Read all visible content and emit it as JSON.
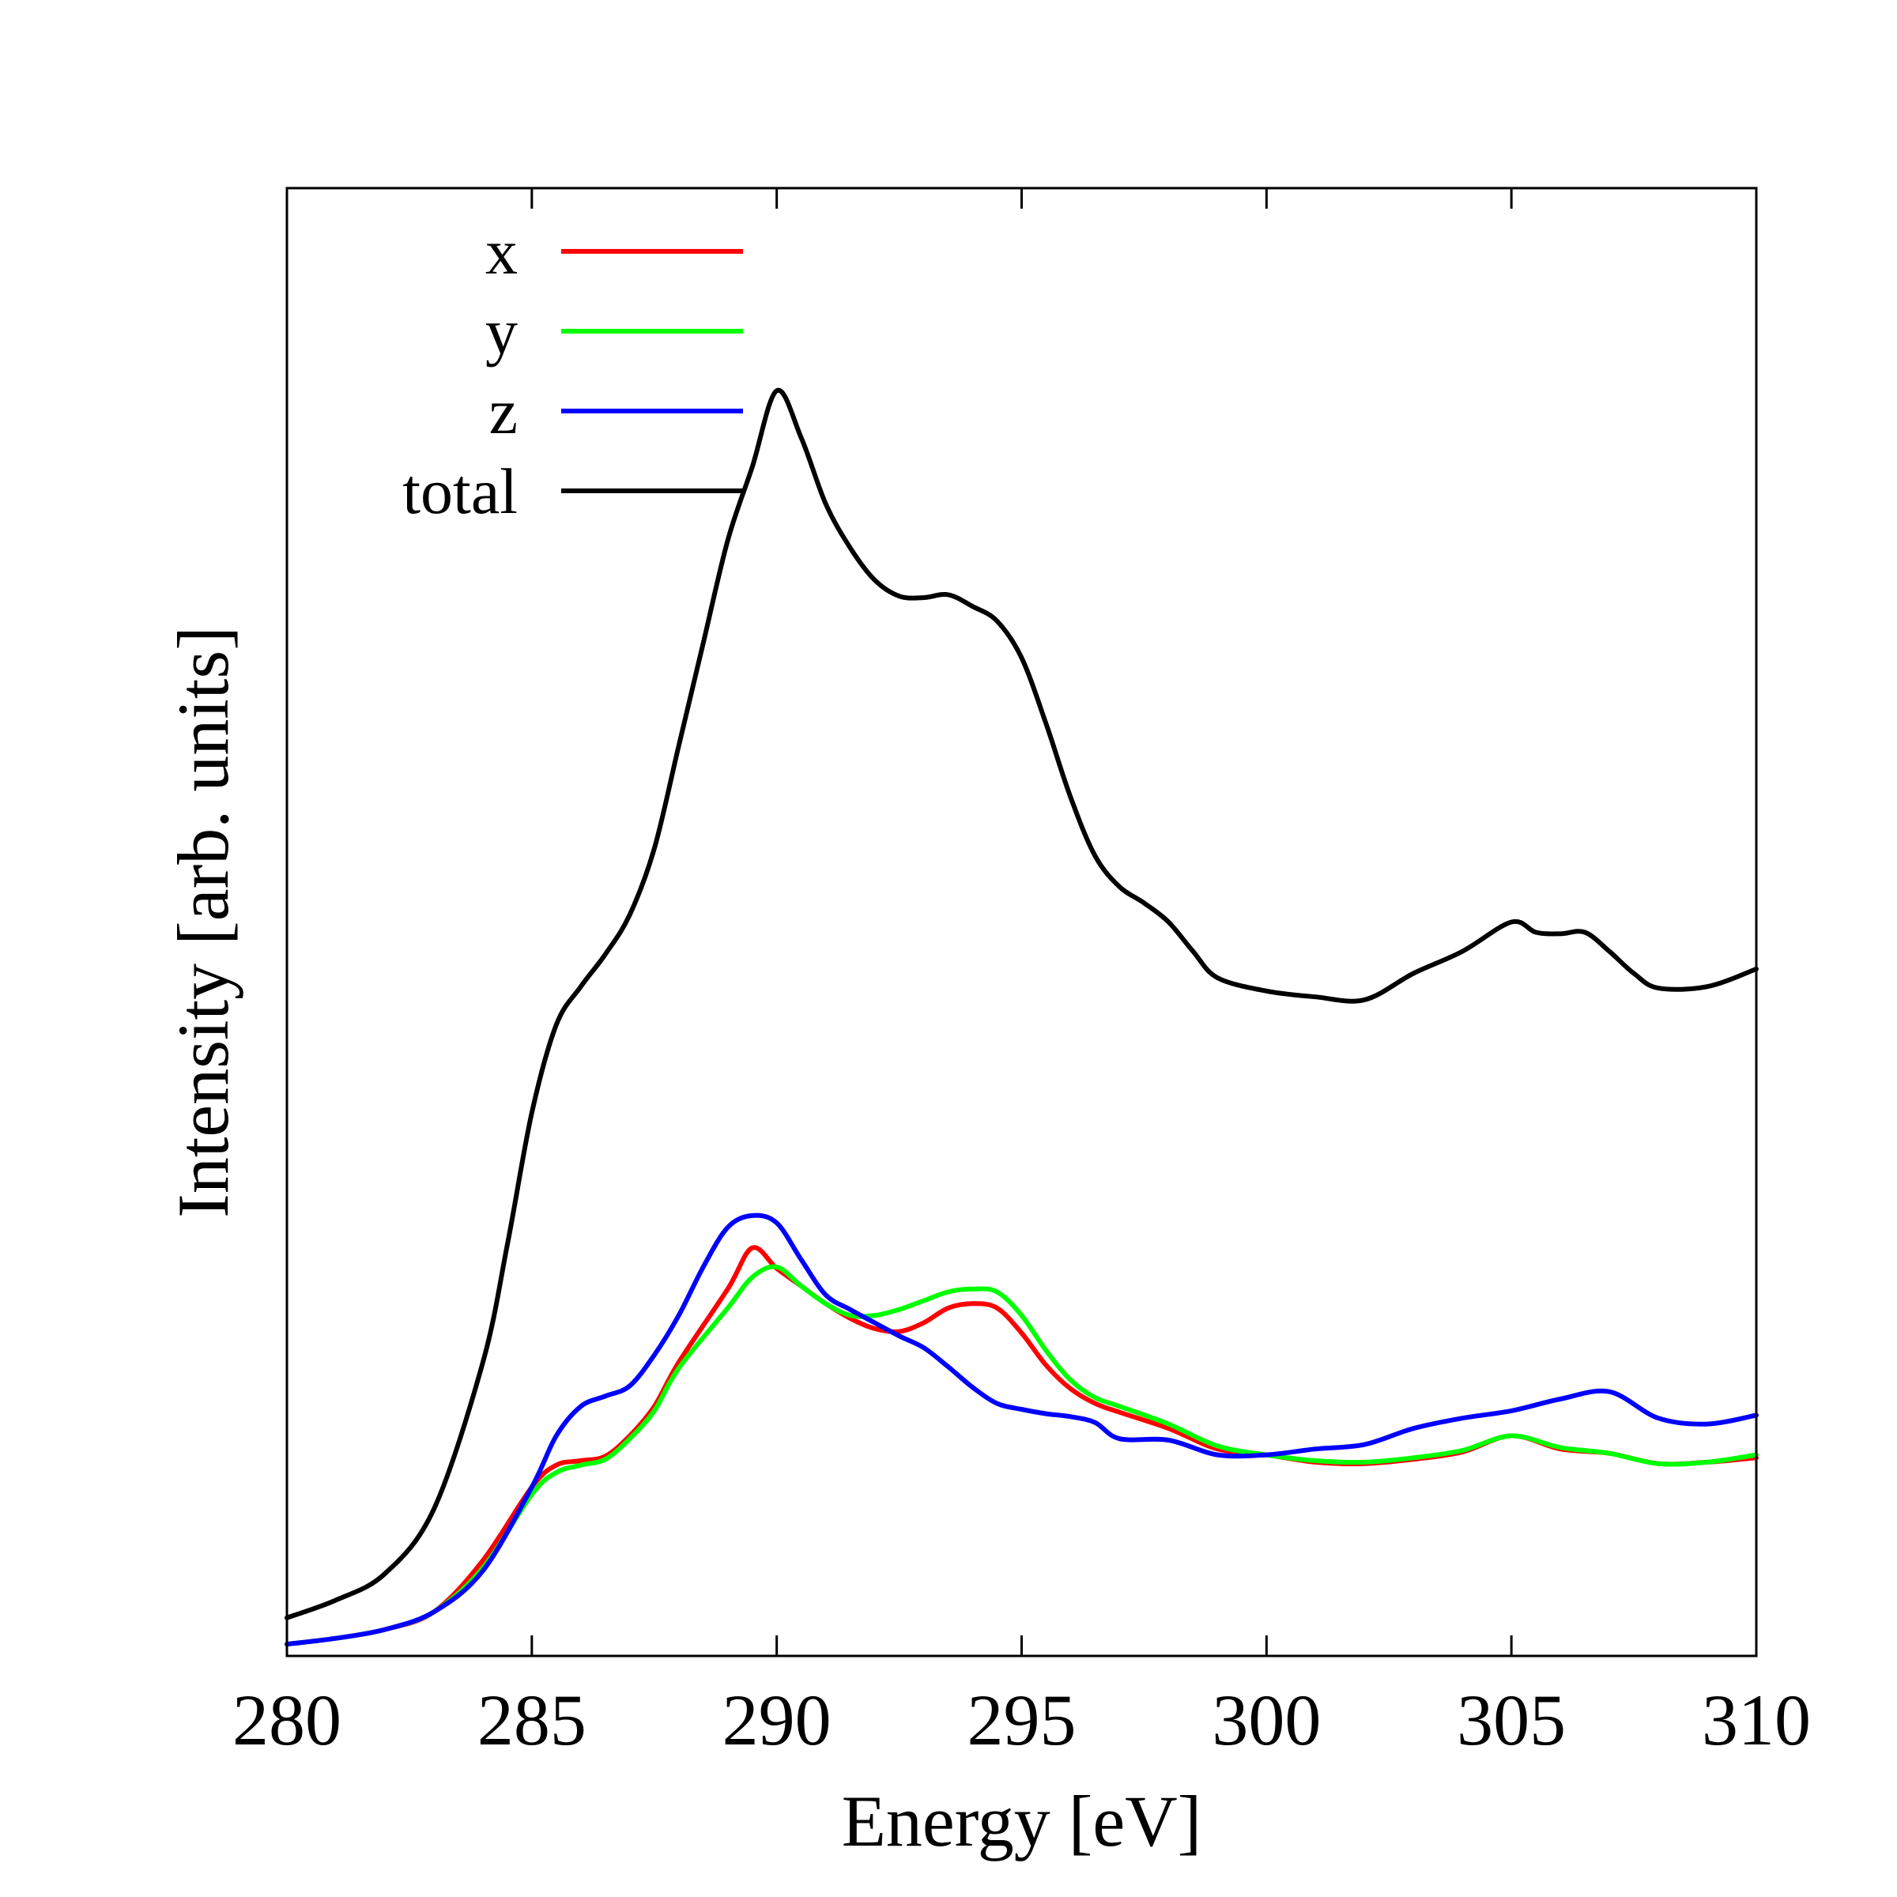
{
  "chart_data": {
    "type": "line",
    "xlabel": "Energy [eV]",
    "ylabel": "Intensity [arb. units]",
    "xlim": [
      280,
      310
    ],
    "ylim": [
      0,
      1
    ],
    "x_ticks": [
      280,
      285,
      290,
      295,
      300,
      305,
      310
    ],
    "y_ticks": [],
    "grid": false,
    "legend_position": "top-left",
    "series": [
      {
        "name": "x",
        "color": "#ff0000",
        "points": [
          [
            280,
            0.008
          ],
          [
            281,
            0.012
          ],
          [
            282,
            0.018
          ],
          [
            283,
            0.03
          ],
          [
            284,
            0.065
          ],
          [
            285,
            0.115
          ],
          [
            285.5,
            0.13
          ],
          [
            286,
            0.133
          ],
          [
            286.5,
            0.136
          ],
          [
            287,
            0.15
          ],
          [
            287.5,
            0.17
          ],
          [
            288,
            0.2
          ],
          [
            289,
            0.25
          ],
          [
            289.5,
            0.278
          ],
          [
            290,
            0.264
          ],
          [
            290.5,
            0.252
          ],
          [
            291,
            0.24
          ],
          [
            291.5,
            0.23
          ],
          [
            292,
            0.223
          ],
          [
            292.5,
            0.221
          ],
          [
            293,
            0.227
          ],
          [
            293.5,
            0.237
          ],
          [
            294,
            0.24
          ],
          [
            294.5,
            0.237
          ],
          [
            295,
            0.22
          ],
          [
            295.5,
            0.198
          ],
          [
            296,
            0.182
          ],
          [
            296.5,
            0.172
          ],
          [
            297,
            0.166
          ],
          [
            298,
            0.155
          ],
          [
            299,
            0.141
          ],
          [
            300,
            0.137
          ],
          [
            301,
            0.132
          ],
          [
            302,
            0.131
          ],
          [
            303,
            0.134
          ],
          [
            304,
            0.139
          ],
          [
            305,
            0.15
          ],
          [
            306,
            0.141
          ],
          [
            307,
            0.138
          ],
          [
            308,
            0.131
          ],
          [
            309,
            0.132
          ],
          [
            310,
            0.135
          ]
        ]
      },
      {
        "name": "y",
        "color": "#00ff00",
        "points": [
          [
            280,
            0.008
          ],
          [
            281,
            0.012
          ],
          [
            282,
            0.018
          ],
          [
            283,
            0.03
          ],
          [
            284,
            0.06
          ],
          [
            285,
            0.11
          ],
          [
            285.5,
            0.125
          ],
          [
            286,
            0.13
          ],
          [
            286.5,
            0.134
          ],
          [
            287,
            0.148
          ],
          [
            287.5,
            0.167
          ],
          [
            288,
            0.196
          ],
          [
            289,
            0.237
          ],
          [
            289.5,
            0.258
          ],
          [
            290,
            0.265
          ],
          [
            290.5,
            0.252
          ],
          [
            291,
            0.24
          ],
          [
            291.5,
            0.232
          ],
          [
            292,
            0.232
          ],
          [
            292.5,
            0.236
          ],
          [
            293,
            0.242
          ],
          [
            293.5,
            0.248
          ],
          [
            294,
            0.25
          ],
          [
            294.5,
            0.248
          ],
          [
            295,
            0.232
          ],
          [
            295.5,
            0.208
          ],
          [
            296,
            0.188
          ],
          [
            296.5,
            0.176
          ],
          [
            297,
            0.17
          ],
          [
            298,
            0.158
          ],
          [
            299,
            0.143
          ],
          [
            300,
            0.137
          ],
          [
            301,
            0.133
          ],
          [
            302,
            0.132
          ],
          [
            303,
            0.135
          ],
          [
            304,
            0.14
          ],
          [
            305,
            0.15
          ],
          [
            306,
            0.142
          ],
          [
            307,
            0.138
          ],
          [
            308,
            0.131
          ],
          [
            309,
            0.132
          ],
          [
            310,
            0.137
          ]
        ]
      },
      {
        "name": "z",
        "color": "#0000ff",
        "points": [
          [
            280,
            0.008
          ],
          [
            281,
            0.012
          ],
          [
            282,
            0.018
          ],
          [
            283,
            0.03
          ],
          [
            284,
            0.058
          ],
          [
            285,
            0.115
          ],
          [
            285.5,
            0.15
          ],
          [
            286,
            0.17
          ],
          [
            286.5,
            0.177
          ],
          [
            287,
            0.184
          ],
          [
            287.5,
            0.205
          ],
          [
            288,
            0.232
          ],
          [
            288.5,
            0.265
          ],
          [
            289,
            0.292
          ],
          [
            289.5,
            0.3
          ],
          [
            290,
            0.295
          ],
          [
            290.5,
            0.27
          ],
          [
            291,
            0.246
          ],
          [
            291.5,
            0.236
          ],
          [
            292,
            0.227
          ],
          [
            292.5,
            0.218
          ],
          [
            293,
            0.21
          ],
          [
            293.5,
            0.197
          ],
          [
            294,
            0.183
          ],
          [
            294.5,
            0.172
          ],
          [
            295,
            0.168
          ],
          [
            295.5,
            0.165
          ],
          [
            296,
            0.163
          ],
          [
            296.5,
            0.159
          ],
          [
            297,
            0.148
          ],
          [
            298,
            0.147
          ],
          [
            299,
            0.137
          ],
          [
            300,
            0.137
          ],
          [
            301,
            0.141
          ],
          [
            302,
            0.144
          ],
          [
            303,
            0.155
          ],
          [
            304,
            0.162
          ],
          [
            305,
            0.167
          ],
          [
            306,
            0.175
          ],
          [
            307,
            0.18
          ],
          [
            308,
            0.162
          ],
          [
            309,
            0.158
          ],
          [
            310,
            0.164
          ]
        ]
      },
      {
        "name": "total",
        "color": "#000000",
        "points": [
          [
            280,
            0.026
          ],
          [
            281,
            0.038
          ],
          [
            282,
            0.056
          ],
          [
            283,
            0.1
          ],
          [
            284,
            0.2
          ],
          [
            284.5,
            0.28
          ],
          [
            285,
            0.37
          ],
          [
            285.5,
            0.43
          ],
          [
            286,
            0.456
          ],
          [
            286.5,
            0.478
          ],
          [
            287,
            0.505
          ],
          [
            287.5,
            0.55
          ],
          [
            288,
            0.62
          ],
          [
            288.5,
            0.69
          ],
          [
            289,
            0.76
          ],
          [
            289.5,
            0.81
          ],
          [
            290,
            0.862
          ],
          [
            290.5,
            0.83
          ],
          [
            291,
            0.785
          ],
          [
            291.5,
            0.755
          ],
          [
            292,
            0.733
          ],
          [
            292.5,
            0.722
          ],
          [
            293,
            0.721
          ],
          [
            293.5,
            0.723
          ],
          [
            294,
            0.715
          ],
          [
            294.5,
            0.705
          ],
          [
            295,
            0.68
          ],
          [
            295.5,
            0.635
          ],
          [
            296,
            0.585
          ],
          [
            296.5,
            0.545
          ],
          [
            297,
            0.524
          ],
          [
            297.5,
            0.513
          ],
          [
            298,
            0.5
          ],
          [
            298.5,
            0.48
          ],
          [
            299,
            0.462
          ],
          [
            300,
            0.453
          ],
          [
            301,
            0.449
          ],
          [
            302,
            0.447
          ],
          [
            303,
            0.465
          ],
          [
            304,
            0.48
          ],
          [
            305,
            0.5
          ],
          [
            305.5,
            0.493
          ],
          [
            306,
            0.492
          ],
          [
            306.5,
            0.493
          ],
          [
            307,
            0.48
          ],
          [
            307.5,
            0.465
          ],
          [
            308,
            0.455
          ],
          [
            309,
            0.456
          ],
          [
            310,
            0.468
          ]
        ]
      }
    ]
  }
}
